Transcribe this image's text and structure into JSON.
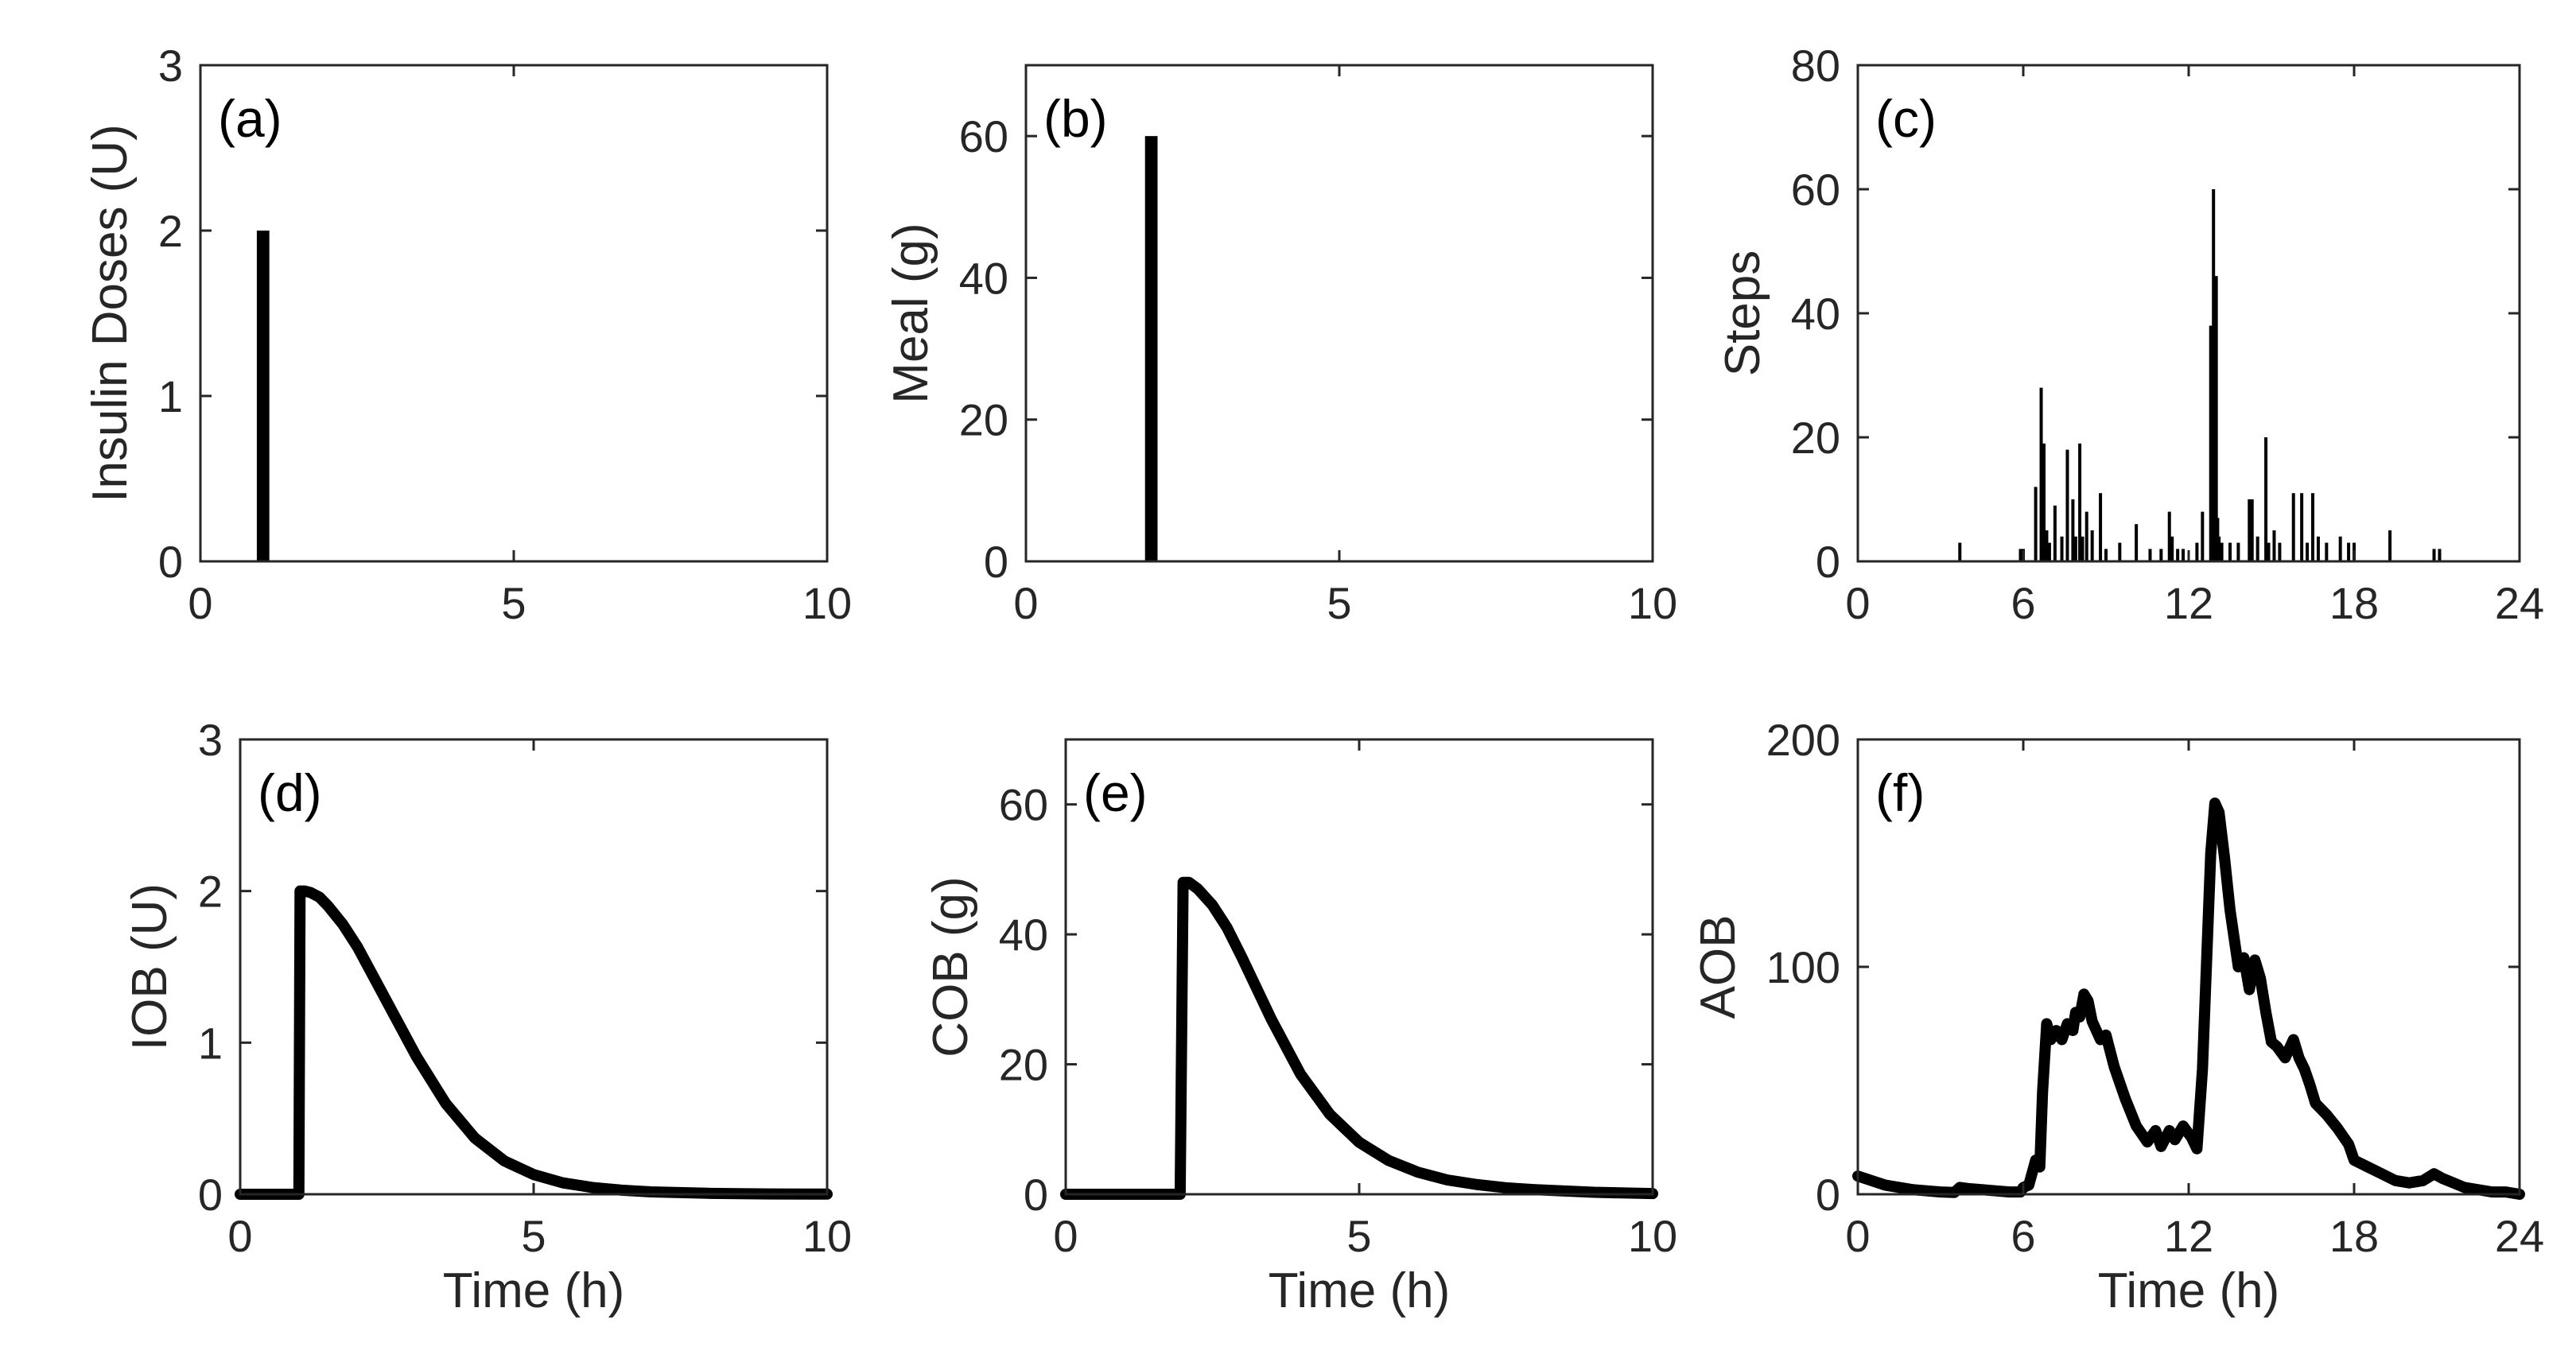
{
  "chart_data": [
    {
      "id": "a",
      "type": "bar",
      "panel_label": "(a)",
      "xlabel": "",
      "ylabel": "Insulin Doses (U)",
      "xlim": [
        0,
        10
      ],
      "ylim": [
        0,
        3
      ],
      "xticks": [
        0,
        5,
        10
      ],
      "yticks": [
        0,
        1,
        2,
        3
      ],
      "xtick_labels": [
        "0",
        "5",
        "10"
      ],
      "ytick_labels": [
        "0",
        "1",
        "2",
        "3"
      ],
      "bar_width": 0.2,
      "x": [
        1
      ],
      "values": [
        2
      ]
    },
    {
      "id": "b",
      "type": "bar",
      "panel_label": "(b)",
      "xlabel": "",
      "ylabel": "Meal (g)",
      "xlim": [
        0,
        10
      ],
      "ylim": [
        0,
        70
      ],
      "xticks": [
        0,
        5,
        10
      ],
      "yticks": [
        0,
        20,
        40,
        60
      ],
      "xtick_labels": [
        "0",
        "5",
        "10"
      ],
      "ytick_labels": [
        "0",
        "20",
        "40",
        "60"
      ],
      "bar_width": 0.2,
      "x": [
        2
      ],
      "values": [
        60
      ]
    },
    {
      "id": "c",
      "type": "bar",
      "panel_label": "(c)",
      "xlabel": "",
      "ylabel": "Steps",
      "xlim": [
        0,
        24
      ],
      "ylim": [
        0,
        80
      ],
      "xticks": [
        0,
        6,
        12,
        18,
        24
      ],
      "yticks": [
        0,
        20,
        40,
        60,
        80
      ],
      "xtick_labels": [
        "0",
        "6",
        "12",
        "18",
        "24"
      ],
      "ytick_labels": [
        "0",
        "20",
        "40",
        "60",
        "80"
      ],
      "bar_width": 0.05,
      "x": [
        3.7,
        5.9,
        6.0,
        6.45,
        6.65,
        6.75,
        6.85,
        6.95,
        7.15,
        7.4,
        7.6,
        7.8,
        7.9,
        8.05,
        8.15,
        8.3,
        8.5,
        8.8,
        9.0,
        9.5,
        10.1,
        10.6,
        11.0,
        11.3,
        11.4,
        11.6,
        11.8,
        12.3,
        12.5,
        12.8,
        12.9,
        13.0,
        13.05,
        13.1,
        13.2,
        13.5,
        13.8,
        14.2,
        14.3,
        14.5,
        14.8,
        14.9,
        15.1,
        15.3,
        15.8,
        16.1,
        16.3,
        16.5,
        16.7,
        17.0,
        17.5,
        17.8,
        18.0,
        19.3,
        20.9,
        21.1
      ],
      "values": [
        3,
        2,
        2,
        12,
        28,
        19,
        5,
        3,
        9,
        4,
        18,
        10,
        4,
        19,
        4,
        8,
        5,
        11,
        2,
        3,
        6,
        2,
        2,
        8,
        4,
        2,
        2,
        3,
        8,
        38,
        60,
        46,
        7,
        4,
        3,
        3,
        3,
        10,
        10,
        4,
        20,
        3,
        5,
        3,
        11,
        11,
        3,
        11,
        4,
        3,
        4,
        3,
        3,
        5,
        2,
        2
      ]
    },
    {
      "id": "d",
      "type": "line",
      "panel_label": "(d)",
      "xlabel": "Time (h)",
      "ylabel": "IOB (U)",
      "xlim": [
        0,
        10
      ],
      "ylim": [
        0,
        3
      ],
      "xticks": [
        0,
        5,
        10
      ],
      "yticks": [
        0,
        1,
        2,
        3
      ],
      "xtick_labels": [
        "0",
        "5",
        "10"
      ],
      "ytick_labels": [
        "0",
        "1",
        "2",
        "3"
      ],
      "series": [
        {
          "name": "IOB",
          "x": [
            0,
            1.0,
            1.02,
            1.1,
            1.2,
            1.35,
            1.5,
            1.75,
            2.0,
            2.5,
            3.0,
            3.5,
            4.0,
            4.5,
            5.0,
            5.5,
            6.0,
            6.5,
            7.0,
            8.0,
            9.0,
            10.0
          ],
          "y": [
            0,
            0,
            2.0,
            2.0,
            1.99,
            1.96,
            1.9,
            1.78,
            1.63,
            1.27,
            0.91,
            0.6,
            0.37,
            0.22,
            0.13,
            0.075,
            0.045,
            0.027,
            0.016,
            0.006,
            0.002,
            0.001
          ]
        }
      ]
    },
    {
      "id": "e",
      "type": "line",
      "panel_label": "(e)",
      "xlabel": "Time (h)",
      "ylabel": "COB (g)",
      "xlim": [
        0,
        10
      ],
      "ylim": [
        0,
        70
      ],
      "xticks": [
        0,
        5,
        10
      ],
      "yticks": [
        0,
        20,
        40,
        60
      ],
      "xtick_labels": [
        "0",
        "5",
        "10"
      ],
      "ytick_labels": [
        "0",
        "20",
        "40",
        "60"
      ],
      "series": [
        {
          "name": "COB",
          "x": [
            0,
            1.95,
            2.0,
            2.1,
            2.25,
            2.5,
            2.75,
            3.0,
            3.5,
            4.0,
            4.5,
            5.0,
            5.5,
            6.0,
            6.5,
            7.0,
            7.5,
            8.0,
            9.0,
            10.0
          ],
          "y": [
            0,
            0,
            48,
            48,
            47,
            44.5,
            41,
            36.5,
            27,
            18.5,
            12.3,
            8,
            5.2,
            3.4,
            2.2,
            1.5,
            1.0,
            0.7,
            0.3,
            0.1
          ]
        }
      ]
    },
    {
      "id": "f",
      "type": "line",
      "panel_label": "(f)",
      "xlabel": "Time (h)",
      "ylabel": "AOB",
      "xlim": [
        0,
        24
      ],
      "ylim": [
        0,
        200
      ],
      "xticks": [
        0,
        6,
        12,
        18,
        24
      ],
      "yticks": [
        0,
        100,
        200
      ],
      "xtick_labels": [
        "0",
        "6",
        "12",
        "18",
        "24"
      ],
      "ytick_labels": [
        "0",
        "100",
        "200"
      ],
      "series": [
        {
          "name": "AOB",
          "x": [
            0,
            0.5,
            1,
            1.5,
            2,
            2.5,
            3,
            3.5,
            3.7,
            4,
            4.5,
            5,
            5.5,
            5.9,
            6.0,
            6.2,
            6.45,
            6.6,
            6.7,
            6.85,
            7.0,
            7.2,
            7.4,
            7.6,
            7.8,
            7.9,
            8.05,
            8.2,
            8.35,
            8.5,
            8.8,
            9.0,
            9.3,
            9.7,
            10.1,
            10.5,
            10.8,
            11.0,
            11.3,
            11.5,
            11.8,
            12.1,
            12.3,
            12.5,
            12.8,
            12.95,
            13.1,
            13.3,
            13.5,
            13.8,
            14.0,
            14.2,
            14.4,
            14.6,
            14.8,
            15.0,
            15.2,
            15.5,
            15.8,
            16.0,
            16.2,
            16.4,
            16.6,
            17.0,
            17.4,
            17.8,
            18.0,
            18.5,
            19.0,
            19.5,
            20.0,
            20.5,
            20.9,
            21.2,
            21.6,
            22.0,
            22.5,
            23.0,
            23.5,
            24.0
          ],
          "y": [
            8,
            6,
            4,
            3,
            2,
            1.5,
            1,
            0.8,
            3,
            2.5,
            2,
            1.5,
            1,
            1,
            3,
            4,
            15,
            12,
            45,
            75,
            68,
            72,
            68,
            75,
            72,
            80,
            78,
            88,
            85,
            76,
            68,
            70,
            56,
            42,
            30,
            23,
            28,
            21,
            28,
            24,
            30,
            25,
            20,
            55,
            150,
            172,
            168,
            148,
            125,
            100,
            104,
            90,
            103,
            95,
            80,
            67,
            65,
            60,
            68,
            60,
            55,
            48,
            40,
            35,
            29,
            22,
            15,
            12,
            9,
            6,
            5,
            6,
            9,
            7,
            5,
            3,
            2,
            1,
            1,
            0
          ]
        }
      ]
    }
  ]
}
